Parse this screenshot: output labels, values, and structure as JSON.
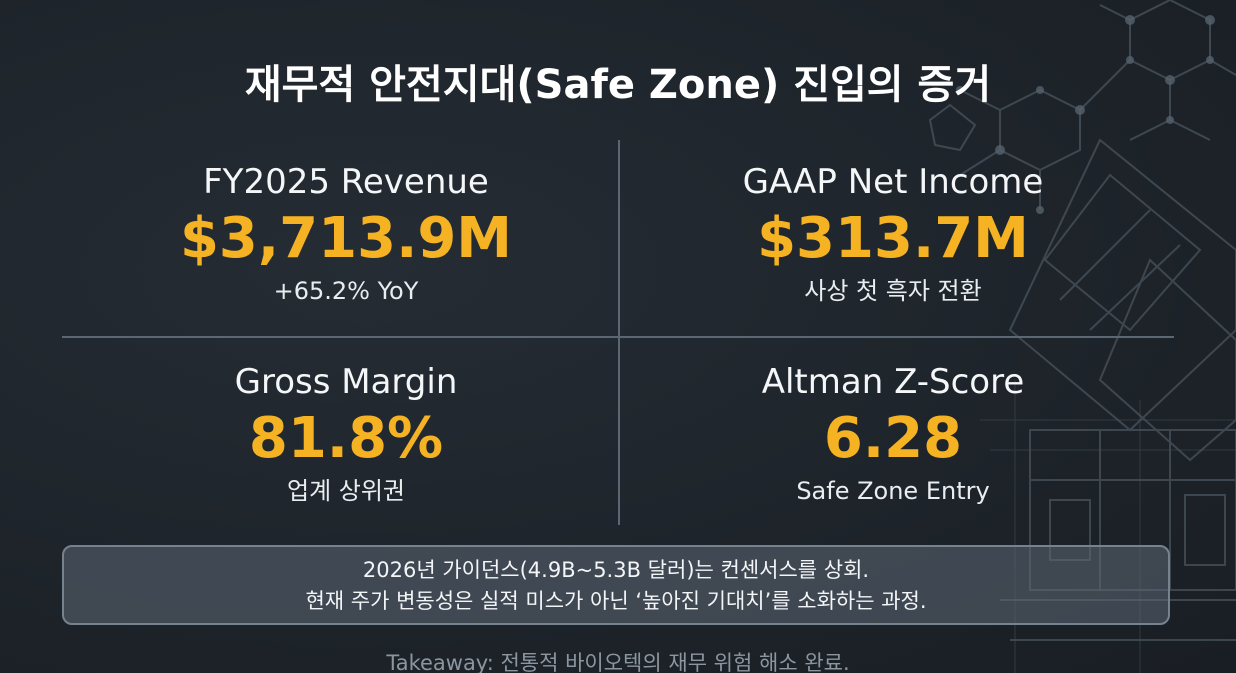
{
  "title": "재무적 안전지대(Safe Zone) 진입의 증거",
  "metrics": [
    {
      "label": "FY2025 Revenue",
      "value": "$3,713.9M",
      "sub": "+65.2% YoY"
    },
    {
      "label": "GAAP Net Income",
      "value": "$313.7M",
      "sub": "사상 첫 흑자 전환"
    },
    {
      "label": "Gross Margin",
      "value": "81.8%",
      "sub": "업계 상위권"
    },
    {
      "label": "Altman Z-Score",
      "value": "6.28",
      "sub": "Safe Zone Entry"
    }
  ],
  "note": {
    "line1": "2026년 가이던스(4.9B~5.3B 달러)는 컨센서스를 상회.",
    "line2": "현재 주가 변동성은 실적 미스가 아닌 ‘높아진 기대치’를 소화하는 과정."
  },
  "takeaway": "Takeaway: 전통적 바이오텍의 재무 위험 해소 완료.",
  "colors": {
    "background": "#1f262d",
    "accent": "#f5b223",
    "divider": "#5b6773",
    "note_border": "#76838f"
  },
  "decor_icons": [
    "molecule-network-graphic",
    "floor-plan-blueprint-graphic"
  ]
}
